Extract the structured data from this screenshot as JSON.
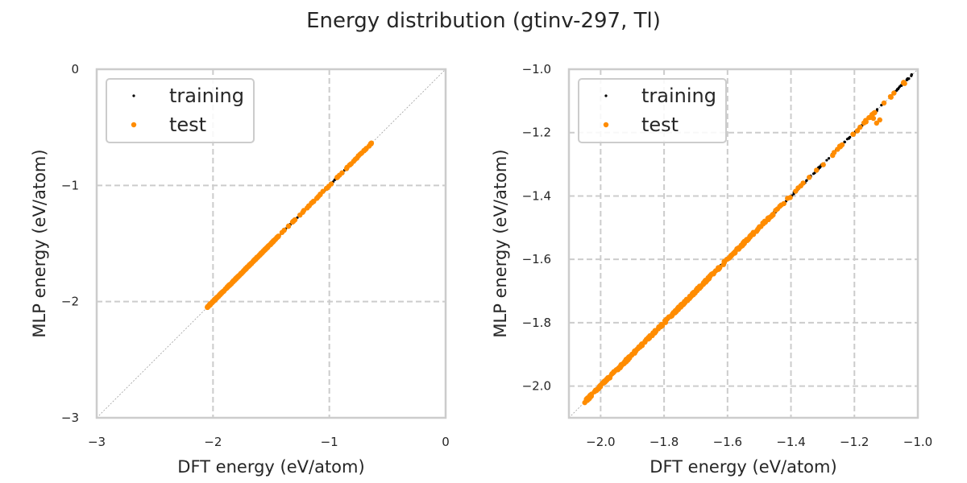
{
  "figure": {
    "title": "Energy distribution (gtinv-297, Tl)"
  },
  "colors": {
    "training": "#000000",
    "test": "#ff8c00",
    "grid": "#cccccc",
    "frame": "#cccccc",
    "diagonal": "#a0a0a0"
  },
  "chart_data": [
    {
      "type": "scatter",
      "xlabel": "DFT energy (eV/atom)",
      "ylabel": "MLP energy (eV/atom)",
      "xlim": [
        -3,
        0
      ],
      "ylim": [
        -3,
        0
      ],
      "xticks": [
        -3,
        -2,
        -1,
        0
      ],
      "yticks": [
        -3,
        -2,
        -1,
        0
      ],
      "xtick_labels": [
        "−3",
        "−2",
        "−1",
        "0"
      ],
      "ytick_labels": [
        "−3",
        "−2",
        "−1",
        "0"
      ],
      "grid": true,
      "diagonal": true,
      "legend_position": "top-left",
      "series": [
        {
          "name": "training",
          "color": "#000000",
          "range": [
            -2.05,
            -0.65
          ]
        },
        {
          "name": "test",
          "color": "#ff8c00",
          "range": [
            -2.05,
            -0.62
          ]
        }
      ]
    },
    {
      "type": "scatter",
      "xlabel": "DFT energy (eV/atom)",
      "ylabel": "MLP energy (eV/atom)",
      "xlim": [
        -2.1,
        -1.0
      ],
      "ylim": [
        -2.1,
        -1.0
      ],
      "xticks": [
        -2.0,
        -1.8,
        -1.6,
        -1.4,
        -1.2,
        -1.0
      ],
      "yticks": [
        -2.0,
        -1.8,
        -1.6,
        -1.4,
        -1.2,
        -1.0
      ],
      "xtick_labels": [
        "−2.0",
        "−1.8",
        "−1.6",
        "−1.4",
        "−1.2",
        "−1.0"
      ],
      "ytick_labels": [
        "−2.0",
        "−1.8",
        "−1.6",
        "−1.4",
        "−1.2",
        "−1.0"
      ],
      "grid": true,
      "diagonal": true,
      "legend_position": "top-left",
      "series": [
        {
          "name": "training",
          "color": "#000000",
          "range": [
            -2.05,
            -1.0
          ]
        },
        {
          "name": "test",
          "color": "#ff8c00",
          "range": [
            -2.05,
            -1.02
          ]
        }
      ]
    }
  ]
}
